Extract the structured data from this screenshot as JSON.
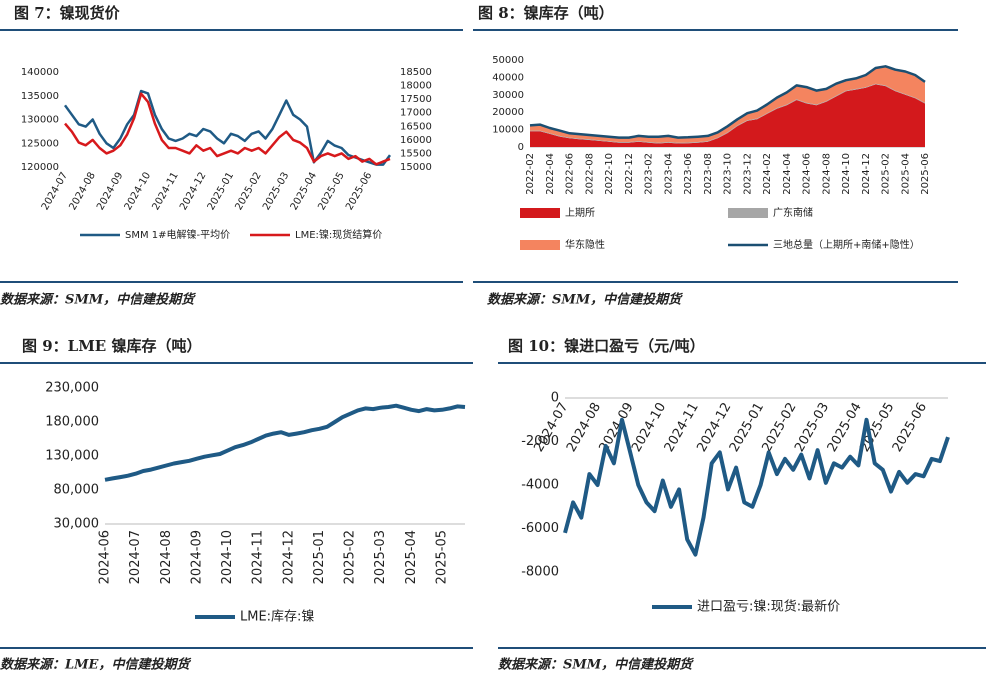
{
  "chart_data": [
    {
      "type": "line",
      "title": "图 7：镍现货价",
      "source": "数据来源：SMM，中信建投期货",
      "categories": [
        "2024-07",
        null,
        null,
        null,
        "2024-08",
        null,
        null,
        null,
        "2024-09",
        null,
        null,
        null,
        "2024-10",
        null,
        null,
        null,
        "2024-11",
        null,
        null,
        null,
        "2024-12",
        null,
        null,
        null,
        "2025-01",
        null,
        null,
        null,
        "2025-02",
        null,
        null,
        null,
        "2025-03",
        null,
        null,
        null,
        "2025-04",
        null,
        null,
        null,
        "2025-05",
        null,
        null,
        null,
        "2025-06",
        null,
        null,
        null
      ],
      "ylim": [
        120000,
        140000
      ],
      "yticks": [
        120000,
        125000,
        130000,
        135000,
        140000
      ],
      "y2lim": [
        15000,
        18500
      ],
      "y2ticks": [
        15000,
        15500,
        16000,
        16500,
        17000,
        17500,
        18000,
        18500
      ],
      "series": [
        {
          "name": "SMM 1#电解镍-平均价",
          "color": "#1f5a85",
          "values": [
            133000,
            131000,
            129000,
            128500,
            130000,
            127000,
            125000,
            124000,
            126000,
            129000,
            131000,
            136000,
            135500,
            131000,
            128000,
            126000,
            125500,
            126000,
            127000,
            126500,
            128000,
            127500,
            126000,
            125000,
            127000,
            126500,
            125500,
            127000,
            127500,
            126000,
            128000,
            131000,
            134000,
            131000,
            130000,
            128500,
            121000,
            123000,
            125500,
            124500,
            124000,
            122500,
            122000,
            121500,
            121000,
            120500,
            120500,
            122500
          ]
        },
        {
          "name": "LME:镍:现货结算价",
          "color": "#d7191c",
          "axis": "y2",
          "values": [
            16600,
            16300,
            15900,
            15800,
            16000,
            15700,
            15500,
            15600,
            15800,
            16200,
            16800,
            17700,
            17400,
            16600,
            16000,
            15700,
            15700,
            15600,
            15500,
            15800,
            15600,
            15700,
            15400,
            15500,
            15600,
            15500,
            15700,
            15600,
            15700,
            15500,
            15800,
            16100,
            16300,
            16000,
            15900,
            15700,
            15200,
            15400,
            15500,
            15400,
            15500,
            15300,
            15400,
            15200,
            15300,
            15100,
            15200,
            15300
          ]
        }
      ]
    },
    {
      "type": "area",
      "title": "图 8：镍库存（吨）",
      "source": "数据来源：SMM，中信建投期货",
      "categories": [
        "2022-02",
        null,
        "2022-04",
        null,
        "2022-06",
        null,
        "2022-08",
        null,
        "2022-10",
        null,
        "2022-12",
        null,
        "2023-02",
        null,
        "2023-04",
        null,
        "2023-06",
        null,
        "2023-08",
        null,
        "2023-10",
        null,
        "2023-12",
        null,
        "2024-02",
        null,
        "2024-04",
        null,
        "2024-06",
        null,
        "2024-08",
        null,
        "2024-10",
        null,
        "2024-12",
        null,
        "2025-02",
        null,
        "2025-04",
        null,
        "2025-06"
      ],
      "ylim": [
        0,
        50000
      ],
      "yticks": [
        0,
        10000,
        20000,
        30000,
        40000,
        50000
      ],
      "series": [
        {
          "name": "上期所",
          "color": "#d3191c",
          "values": [
            9000,
            9000,
            7500,
            6000,
            5000,
            4500,
            4000,
            3500,
            3000,
            2500,
            2500,
            3000,
            2500,
            2000,
            2500,
            2000,
            2200,
            2500,
            3000,
            5000,
            8000,
            12000,
            15000,
            16000,
            19000,
            22000,
            24000,
            27000,
            25000,
            24000,
            26000,
            29000,
            32000,
            33000,
            34000,
            36000,
            35000,
            32000,
            30000,
            28000,
            25000
          ]
        },
        {
          "name": "广东南储",
          "color": "#a6a6a6",
          "values": [
            400,
            400,
            400,
            400,
            400,
            400,
            400,
            400,
            400,
            400,
            400,
            400,
            400,
            400,
            400,
            400,
            400,
            400,
            400,
            400,
            400,
            400,
            400,
            400,
            400,
            400,
            400,
            400,
            400,
            400,
            400,
            400,
            400,
            400,
            400,
            400,
            400,
            400,
            400,
            400,
            400
          ]
        },
        {
          "name": "华东隐性",
          "color": "#f4845f",
          "values": [
            3000,
            3500,
            3000,
            3000,
            2500,
            2500,
            2500,
            2500,
            2500,
            2500,
            2500,
            3000,
            3000,
            3500,
            3500,
            3000,
            3000,
            3000,
            3000,
            3000,
            3500,
            3500,
            4000,
            4500,
            5000,
            6000,
            7000,
            8000,
            9000,
            8000,
            7000,
            7000,
            6000,
            6000,
            7000,
            9000,
            11000,
            12000,
            13000,
            13000,
            12000
          ]
        },
        {
          "name": "三地总量（上期所+南储+隐性）",
          "color": "#1b4f72",
          "type": "line",
          "values": [
            12400,
            12900,
            10900,
            9400,
            7900,
            7400,
            6900,
            6400,
            5900,
            5400,
            5400,
            6400,
            5900,
            5900,
            6400,
            5400,
            5600,
            5900,
            6400,
            8400,
            11900,
            15900,
            19400,
            20900,
            24400,
            28400,
            31400,
            35400,
            34400,
            32400,
            33400,
            36400,
            38400,
            39400,
            41400,
            45400,
            46400,
            44400,
            43400,
            41400,
            37400
          ]
        }
      ]
    },
    {
      "type": "line",
      "title": "图 9：LME 镍库存（吨）",
      "source": "数据来源：LME，中信建投期货",
      "categories": [
        "2024-06",
        null,
        null,
        null,
        "2024-07",
        null,
        null,
        null,
        "2024-08",
        null,
        null,
        null,
        "2024-09",
        null,
        null,
        null,
        "2024-10",
        null,
        null,
        null,
        "2024-11",
        null,
        null,
        null,
        "2024-12",
        null,
        null,
        null,
        "2025-01",
        null,
        null,
        null,
        "2025-02",
        null,
        null,
        null,
        "2025-03",
        null,
        null,
        null,
        "2025-04",
        null,
        null,
        null,
        "2025-05",
        null,
        null,
        null
      ],
      "ylim": [
        30000,
        230000
      ],
      "yticks": [
        {
          "value": 30000,
          "label": "30,000"
        },
        {
          "value": 80000,
          "label": "80,000"
        },
        {
          "value": 130000,
          "label": "130,000"
        },
        {
          "value": 180000,
          "label": "180,000"
        },
        {
          "value": 230000,
          "label": "230,000"
        }
      ],
      "series": [
        {
          "name": "LME:库存:镍",
          "color": "#1f5a85",
          "values": [
            95000,
            97000,
            99000,
            101000,
            104000,
            108000,
            110000,
            113000,
            116000,
            119000,
            121000,
            123000,
            126000,
            129000,
            131000,
            133000,
            138000,
            143000,
            146000,
            150000,
            155000,
            160000,
            163000,
            165000,
            161000,
            163000,
            165000,
            168000,
            170000,
            173000,
            180000,
            187000,
            192000,
            197000,
            200000,
            199000,
            201000,
            202000,
            204000,
            201000,
            198000,
            196000,
            199000,
            197000,
            198000,
            200000,
            203000,
            202000
          ]
        }
      ]
    },
    {
      "type": "line",
      "title": "图 10：镍进口盈亏（元/吨）",
      "source": "数据来源：SMM，中信建投期货",
      "categories": [
        "2024-07",
        null,
        null,
        null,
        "2024-08",
        null,
        null,
        null,
        "2024-09",
        null,
        null,
        null,
        "2024-10",
        null,
        null,
        null,
        "2024-11",
        null,
        null,
        null,
        "2024-12",
        null,
        null,
        null,
        "2025-01",
        null,
        null,
        null,
        "2025-02",
        null,
        null,
        null,
        "2025-03",
        null,
        null,
        null,
        "2025-04",
        null,
        null,
        null,
        "2025-05",
        null,
        null,
        null,
        "2025-06",
        null,
        null,
        null
      ],
      "ylim": [
        -8000,
        0
      ],
      "yticks": [
        0,
        -2000,
        -4000,
        -6000,
        -8000
      ],
      "series": [
        {
          "name": "进口盈亏:镍:现货:最新价",
          "color": "#1f5a85",
          "values": [
            -6200,
            -4800,
            -5500,
            -3500,
            -4000,
            -2200,
            -3000,
            -1000,
            -2500,
            -4000,
            -4800,
            -5200,
            -3800,
            -5000,
            -4200,
            -6500,
            -7200,
            -5500,
            -3000,
            -2500,
            -4200,
            -3200,
            -4800,
            -5000,
            -4000,
            -2500,
            -3500,
            -2800,
            -3300,
            -2600,
            -3700,
            -2400,
            -3900,
            -3000,
            -3200,
            -2700,
            -3100,
            -1000,
            -3000,
            -3300,
            -4300,
            -3400,
            -3900,
            -3500,
            -3600,
            -2800,
            -2900,
            -1800
          ]
        }
      ]
    }
  ]
}
